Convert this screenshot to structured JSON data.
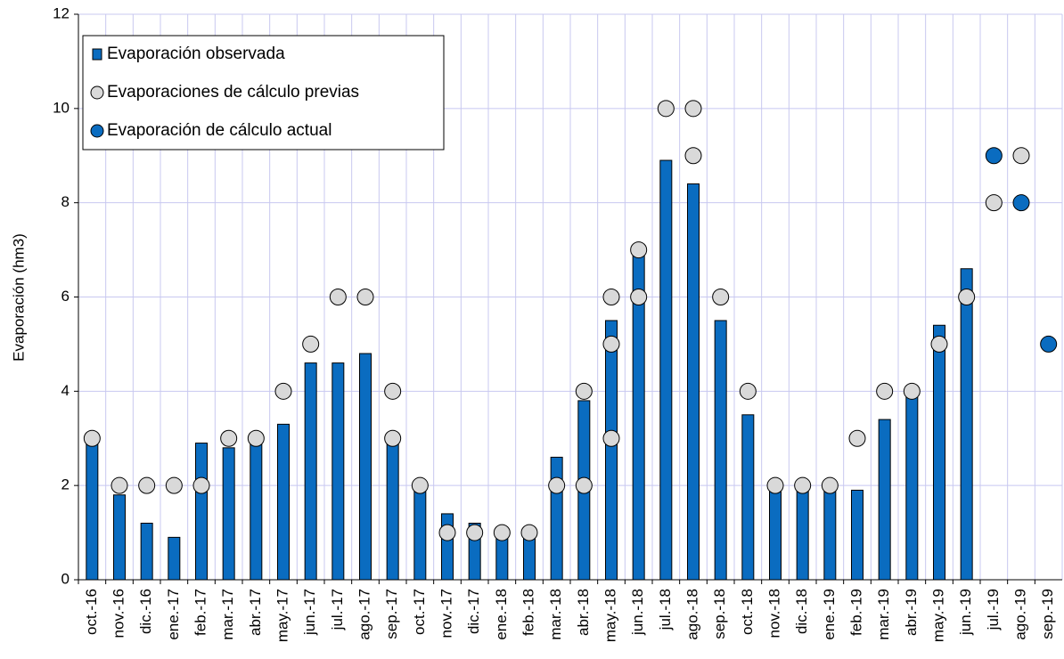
{
  "chart_data": {
    "type": "bar",
    "ylabel": "Evaporación (hm3)",
    "categories": [
      "oct.-16",
      "nov.-16",
      "dic.-16",
      "ene.-17",
      "feb.-17",
      "mar.-17",
      "abr.-17",
      "may.-17",
      "jun.-17",
      "jul.-17",
      "ago.-17",
      "sep.-17",
      "oct.-17",
      "nov.-17",
      "dic.-17",
      "ene.-18",
      "feb.-18",
      "mar.-18",
      "abr.-18",
      "may.-18",
      "jun.-18",
      "jul.-18",
      "ago.-18",
      "sep.-18",
      "oct.-18",
      "nov.-18",
      "dic.-18",
      "ene.-19",
      "feb.-19",
      "mar.-19",
      "abr.-19",
      "may.-19",
      "jun.-19",
      "jul.-19",
      "ago.-19",
      "sep.-19"
    ],
    "series": [
      {
        "name": "Evaporación observada",
        "color": "#0a6cc0",
        "kind": "bar",
        "values": [
          3.0,
          1.8,
          1.2,
          0.9,
          2.9,
          2.8,
          3.0,
          3.3,
          4.6,
          4.6,
          4.8,
          3.0,
          2.0,
          1.4,
          1.2,
          1.0,
          1.0,
          2.6,
          3.8,
          5.5,
          7.0,
          8.9,
          8.4,
          5.5,
          3.5,
          2.0,
          2.0,
          2.0,
          1.9,
          3.4,
          4.0,
          5.4,
          6.6,
          null,
          null,
          null
        ]
      },
      {
        "name": "Evaporaciones de cálculo previas",
        "color": "#d9d9d9",
        "kind": "points",
        "values": [
          [
            3
          ],
          [
            2
          ],
          [
            2
          ],
          [
            2
          ],
          [
            2
          ],
          [
            3
          ],
          [
            3
          ],
          [
            4
          ],
          [
            5
          ],
          [
            6
          ],
          [
            6
          ],
          [
            4,
            3
          ],
          [
            2
          ],
          [
            1
          ],
          [
            1
          ],
          [
            1
          ],
          [
            1
          ],
          [
            2
          ],
          [
            4,
            2
          ],
          [
            6,
            5,
            3
          ],
          [
            7,
            6
          ],
          [
            10
          ],
          [
            10,
            9
          ],
          [
            6
          ],
          [
            4
          ],
          [
            2
          ],
          [
            2
          ],
          [
            2
          ],
          [
            3
          ],
          [
            4
          ],
          [
            4
          ],
          [
            5
          ],
          [
            6
          ],
          [
            8
          ],
          [
            9
          ],
          []
        ]
      },
      {
        "name": "Evaporación de cálculo actual",
        "color": "#0a6cc0",
        "kind": "dot",
        "values": [
          null,
          null,
          null,
          null,
          null,
          null,
          null,
          null,
          null,
          null,
          null,
          null,
          null,
          null,
          null,
          null,
          null,
          null,
          null,
          null,
          null,
          null,
          null,
          null,
          null,
          null,
          null,
          null,
          null,
          null,
          null,
          null,
          null,
          9,
          8,
          5
        ]
      }
    ],
    "ylim": [
      0,
      12
    ],
    "yticks": [
      0,
      2,
      4,
      6,
      8,
      10,
      12
    ],
    "grid": true,
    "legend": "upper left"
  }
}
